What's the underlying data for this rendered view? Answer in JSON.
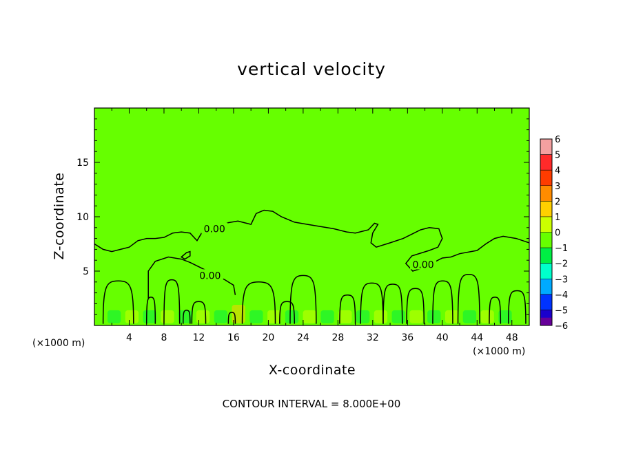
{
  "chart_data": {
    "type": "heatmap",
    "title": "vertical velocity",
    "xlabel": "X-coordinate",
    "ylabel": "Z-coordinate",
    "x_unit_label": "(×1000 m)",
    "z_unit_label": "(×1000 m)",
    "xlim": [
      0,
      50
    ],
    "ylim": [
      0,
      20
    ],
    "x_ticks": [
      4,
      8,
      12,
      16,
      20,
      24,
      28,
      32,
      36,
      40,
      44,
      48
    ],
    "y_ticks": [
      5,
      10,
      15
    ],
    "colorbar": {
      "levels": [
        6,
        5,
        4,
        3,
        2,
        1,
        0,
        -1,
        -2,
        -3,
        -4,
        -5,
        -6
      ],
      "colors": [
        "#f4a0a0",
        "#ff2a2a",
        "#ff3c00",
        "#ff8c00",
        "#ffd000",
        "#ccff00",
        "#66ff00",
        "#00ee44",
        "#00ffcc",
        "#00aaff",
        "#0033ff",
        "#1a00cc",
        "#660099"
      ]
    },
    "background_value": 0,
    "contour_labels": [
      {
        "text": "0.00",
        "x": 13.8,
        "z": 8.9
      },
      {
        "text": "0.00",
        "x": 13.3,
        "z": 4.6
      },
      {
        "text": "0.00",
        "x": 37.8,
        "z": 5.6
      }
    ],
    "contour_interval_text": "CONTOUR INTERVAL = 8.000E+00",
    "zero_contour_upper": [
      [
        0,
        7.5
      ],
      [
        1,
        7.0
      ],
      [
        2,
        6.8
      ],
      [
        3,
        7.0
      ],
      [
        4,
        7.2
      ],
      [
        5,
        7.8
      ],
      [
        6,
        8.0
      ],
      [
        7,
        8.0
      ],
      [
        8,
        8.1
      ],
      [
        9,
        8.5
      ],
      [
        10,
        8.6
      ],
      [
        11,
        8.5
      ],
      [
        11.8,
        7.8
      ],
      [
        12.4,
        8.6
      ],
      [
        13.5,
        9.1
      ],
      [
        15,
        9.4
      ],
      [
        16.5,
        9.6
      ],
      [
        17.5,
        9.4
      ],
      [
        18,
        9.3
      ],
      [
        18.6,
        10.3
      ],
      [
        19.5,
        10.6
      ],
      [
        20.5,
        10.5
      ],
      [
        21.5,
        10.0
      ],
      [
        23,
        9.5
      ],
      [
        24.5,
        9.3
      ],
      [
        26,
        9.1
      ],
      [
        27.5,
        8.9
      ],
      [
        29,
        8.6
      ],
      [
        30,
        8.5
      ],
      [
        31.5,
        8.8
      ],
      [
        32.2,
        9.4
      ],
      [
        32.6,
        9.3
      ],
      [
        32.0,
        8.5
      ],
      [
        31.8,
        7.6
      ],
      [
        32.4,
        7.2
      ],
      [
        34,
        7.6
      ],
      [
        35.5,
        8.0
      ],
      [
        36.5,
        8.4
      ],
      [
        37.5,
        8.8
      ],
      [
        38.5,
        9.0
      ],
      [
        39.6,
        8.9
      ],
      [
        40,
        8.0
      ],
      [
        39.5,
        7.2
      ],
      [
        38.5,
        6.9
      ],
      [
        36.5,
        6.4
      ],
      [
        35.8,
        5.7
      ],
      [
        36.6,
        5.0
      ],
      [
        37.8,
        5.3
      ],
      [
        39.0,
        5.8
      ],
      [
        40.0,
        6.2
      ],
      [
        41.0,
        6.3
      ],
      [
        42.0,
        6.6
      ],
      [
        44.0,
        6.9
      ],
      [
        45.0,
        7.5
      ],
      [
        46.0,
        8.0
      ],
      [
        47.0,
        8.2
      ],
      [
        48.5,
        8.0
      ],
      [
        50,
        7.6
      ]
    ],
    "zero_contour_mid": [
      [
        6.2,
        2.5
      ],
      [
        6.2,
        5.0
      ],
      [
        7.0,
        5.9
      ],
      [
        8.5,
        6.3
      ],
      [
        10.0,
        6.1
      ],
      [
        11.0,
        5.8
      ],
      [
        12.5,
        5.2
      ],
      [
        14.0,
        4.6
      ],
      [
        15.0,
        4.2
      ],
      [
        16.0,
        3.7
      ],
      [
        16.2,
        2.8
      ]
    ],
    "zero_contour_small": [
      [
        10.0,
        6.3
      ],
      [
        10.6,
        6.7
      ],
      [
        11.0,
        6.8
      ],
      [
        11.0,
        6.4
      ],
      [
        10.4,
        6.1
      ],
      [
        10.0,
        6.3
      ]
    ],
    "updraft_columns": [
      {
        "x": 1.0,
        "width": 3.5,
        "top": 4.1
      },
      {
        "x": 6.0,
        "width": 1.0,
        "top": 2.6
      },
      {
        "x": 8.0,
        "width": 1.8,
        "top": 4.2
      },
      {
        "x": 10.2,
        "width": 0.8,
        "top": 1.4
      },
      {
        "x": 11.2,
        "width": 1.6,
        "top": 2.2
      },
      {
        "x": 15.4,
        "width": 0.8,
        "top": 1.2
      },
      {
        "x": 17.0,
        "width": 3.8,
        "top": 4.0
      },
      {
        "x": 21.3,
        "width": 1.7,
        "top": 2.2
      },
      {
        "x": 22.5,
        "width": 3.0,
        "top": 4.6
      },
      {
        "x": 28.2,
        "width": 1.8,
        "top": 2.8
      },
      {
        "x": 30.6,
        "width": 2.6,
        "top": 3.9
      },
      {
        "x": 33.2,
        "width": 2.2,
        "top": 3.8
      },
      {
        "x": 35.9,
        "width": 2.0,
        "top": 3.4
      },
      {
        "x": 38.9,
        "width": 2.3,
        "top": 4.1
      },
      {
        "x": 41.8,
        "width": 2.5,
        "top": 4.7
      },
      {
        "x": 45.4,
        "width": 1.3,
        "top": 2.6
      },
      {
        "x": 47.6,
        "width": 2.0,
        "top": 3.2
      }
    ]
  }
}
